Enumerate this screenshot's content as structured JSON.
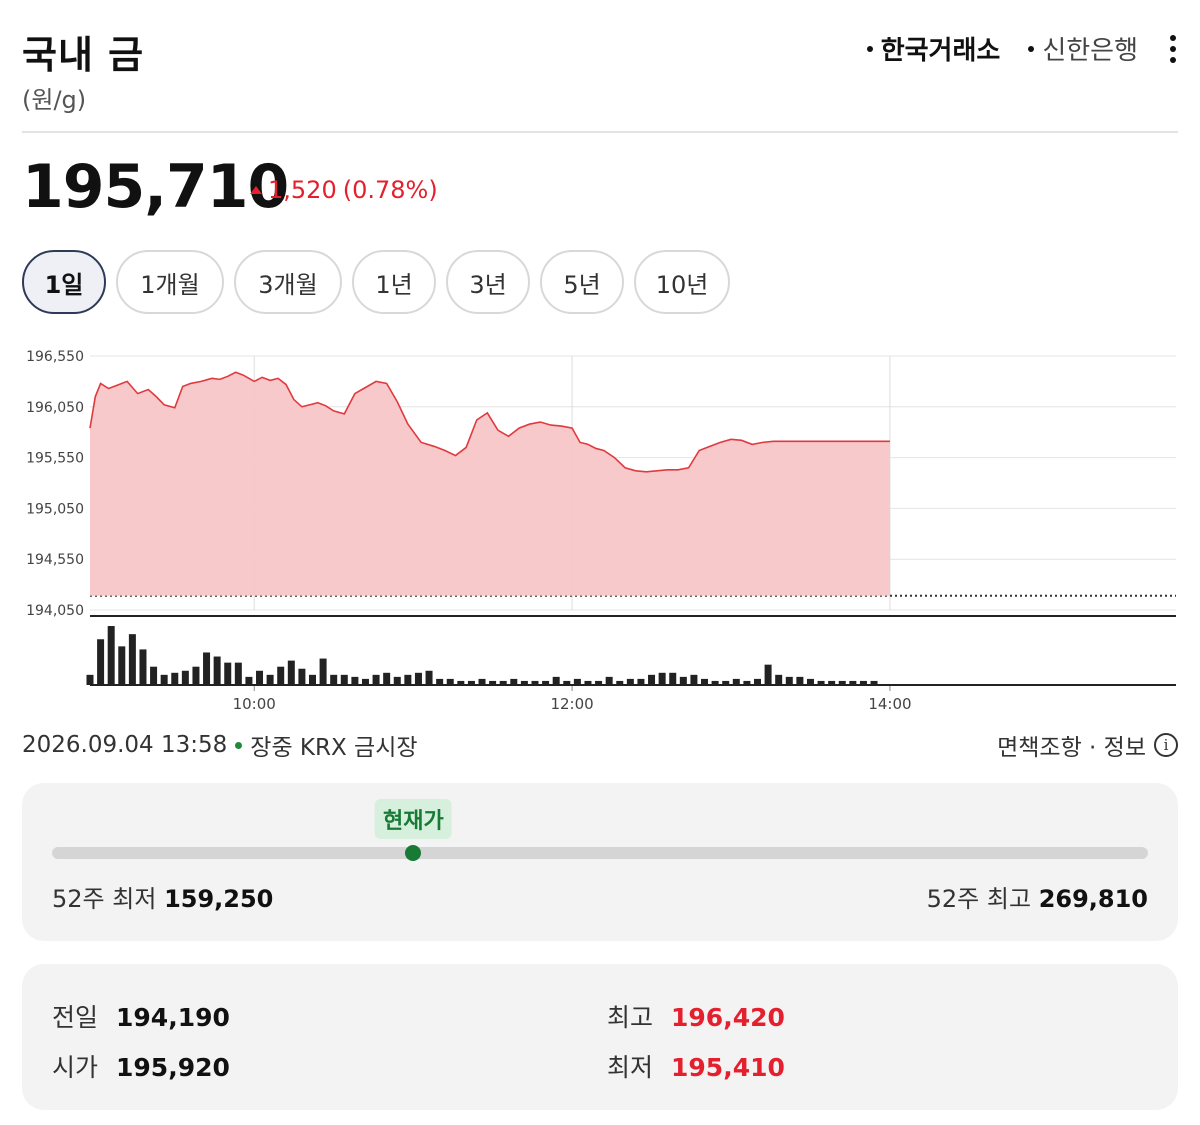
{
  "header": {
    "title": "국내 금",
    "unit": "(원/g)",
    "sources": [
      "한국거래소",
      "신한은행"
    ],
    "active_source": 0
  },
  "quote": {
    "price": "195,710",
    "change": "1,520",
    "change_pct": "(0.78%)",
    "direction": "up"
  },
  "periods": [
    "1일",
    "1개월",
    "3개월",
    "1년",
    "3년",
    "5년",
    "10년"
  ],
  "active_period": 0,
  "meta": {
    "timestamp": "2026.09.04 13:58",
    "status": "장중 KRX 금시장",
    "disclaimer": "면책조항 · 정보"
  },
  "range": {
    "current_label": "현재가",
    "low_label": "52주 최저",
    "low_value": "159,250",
    "high_label": "52주 최고",
    "high_value": "269,810",
    "current_value": 195710,
    "low": 159250,
    "high": 269810
  },
  "stats": {
    "prev_label": "전일",
    "prev_value": "194,190",
    "open_label": "시가",
    "open_value": "195,920",
    "high_label": "최고",
    "high_value": "196,420",
    "low_label": "최저",
    "low_value": "195,410"
  },
  "colors": {
    "up": "#e5202e",
    "area_fill": "#f7c6c8",
    "line": "#e03a3f",
    "volume": "#222222",
    "accent_green": "#177a35"
  },
  "chart_data": {
    "type": "area",
    "y_ticks": [
      "196,550",
      "196,050",
      "195,550",
      "195,050",
      "194,550",
      "194,050"
    ],
    "ylim": [
      194050,
      196550
    ],
    "x_ticks": [
      "10:00",
      "12:00",
      "14:00"
    ],
    "x_tick_minutes": [
      600,
      720,
      840
    ],
    "xlim": [
      538,
      948
    ],
    "baseline": 194190,
    "price_series": {
      "x": [
        538,
        540,
        542,
        545,
        548,
        552,
        556,
        560,
        563,
        566,
        570,
        573,
        576,
        580,
        584,
        587,
        590,
        593,
        596,
        600,
        603,
        606,
        609,
        612,
        615,
        618,
        621,
        624,
        627,
        630,
        634,
        638,
        642,
        646,
        650,
        654,
        658,
        663,
        668,
        672,
        676,
        680,
        684,
        688,
        692,
        696,
        700,
        704,
        708,
        712,
        716,
        720,
        723,
        726,
        729,
        732,
        736,
        740,
        744,
        748,
        752,
        756,
        760,
        764,
        768,
        772,
        776,
        780,
        784,
        788,
        792,
        796,
        800,
        804,
        808,
        812,
        816,
        820,
        824,
        828,
        832,
        836,
        840
      ],
      "y": [
        195840,
        196150,
        196280,
        196230,
        196260,
        196300,
        196180,
        196220,
        196150,
        196070,
        196040,
        196250,
        196280,
        196300,
        196330,
        196320,
        196350,
        196390,
        196360,
        196300,
        196340,
        196310,
        196330,
        196270,
        196120,
        196050,
        196070,
        196090,
        196060,
        196010,
        195980,
        196180,
        196240,
        196300,
        196280,
        196100,
        195880,
        195700,
        195660,
        195620,
        195570,
        195650,
        195920,
        195990,
        195820,
        195760,
        195840,
        195880,
        195900,
        195870,
        195860,
        195840,
        195700,
        195680,
        195640,
        195620,
        195550,
        195450,
        195420,
        195410,
        195420,
        195430,
        195430,
        195450,
        195620,
        195660,
        195700,
        195730,
        195720,
        195680,
        195700,
        195710,
        195710,
        195710,
        195710,
        195710,
        195710,
        195710,
        195710,
        195710,
        195710,
        195710,
        195710
      ]
    },
    "volume_series": {
      "x": [
        538,
        542,
        546,
        550,
        554,
        558,
        562,
        566,
        570,
        574,
        578,
        582,
        586,
        590,
        594,
        598,
        602,
        606,
        610,
        614,
        618,
        622,
        626,
        630,
        634,
        638,
        642,
        646,
        650,
        654,
        658,
        662,
        666,
        670,
        674,
        678,
        682,
        686,
        690,
        694,
        698,
        702,
        706,
        710,
        714,
        718,
        722,
        726,
        730,
        734,
        738,
        742,
        746,
        750,
        754,
        758,
        762,
        766,
        770,
        774,
        778,
        782,
        786,
        790,
        794,
        798,
        802,
        806,
        810,
        814,
        818,
        822,
        826,
        830,
        834
      ],
      "y": [
        10,
        45,
        58,
        38,
        50,
        35,
        18,
        10,
        12,
        14,
        18,
        32,
        28,
        22,
        22,
        8,
        14,
        10,
        18,
        24,
        16,
        10,
        26,
        10,
        10,
        8,
        6,
        10,
        12,
        8,
        10,
        12,
        14,
        6,
        6,
        4,
        4,
        6,
        4,
        4,
        6,
        4,
        4,
        4,
        8,
        4,
        6,
        4,
        4,
        8,
        4,
        6,
        6,
        10,
        12,
        12,
        8,
        10,
        6,
        4,
        4,
        6,
        4,
        6,
        20,
        10,
        8,
        8,
        6,
        4,
        4,
        4,
        4,
        4,
        4
      ]
    }
  }
}
